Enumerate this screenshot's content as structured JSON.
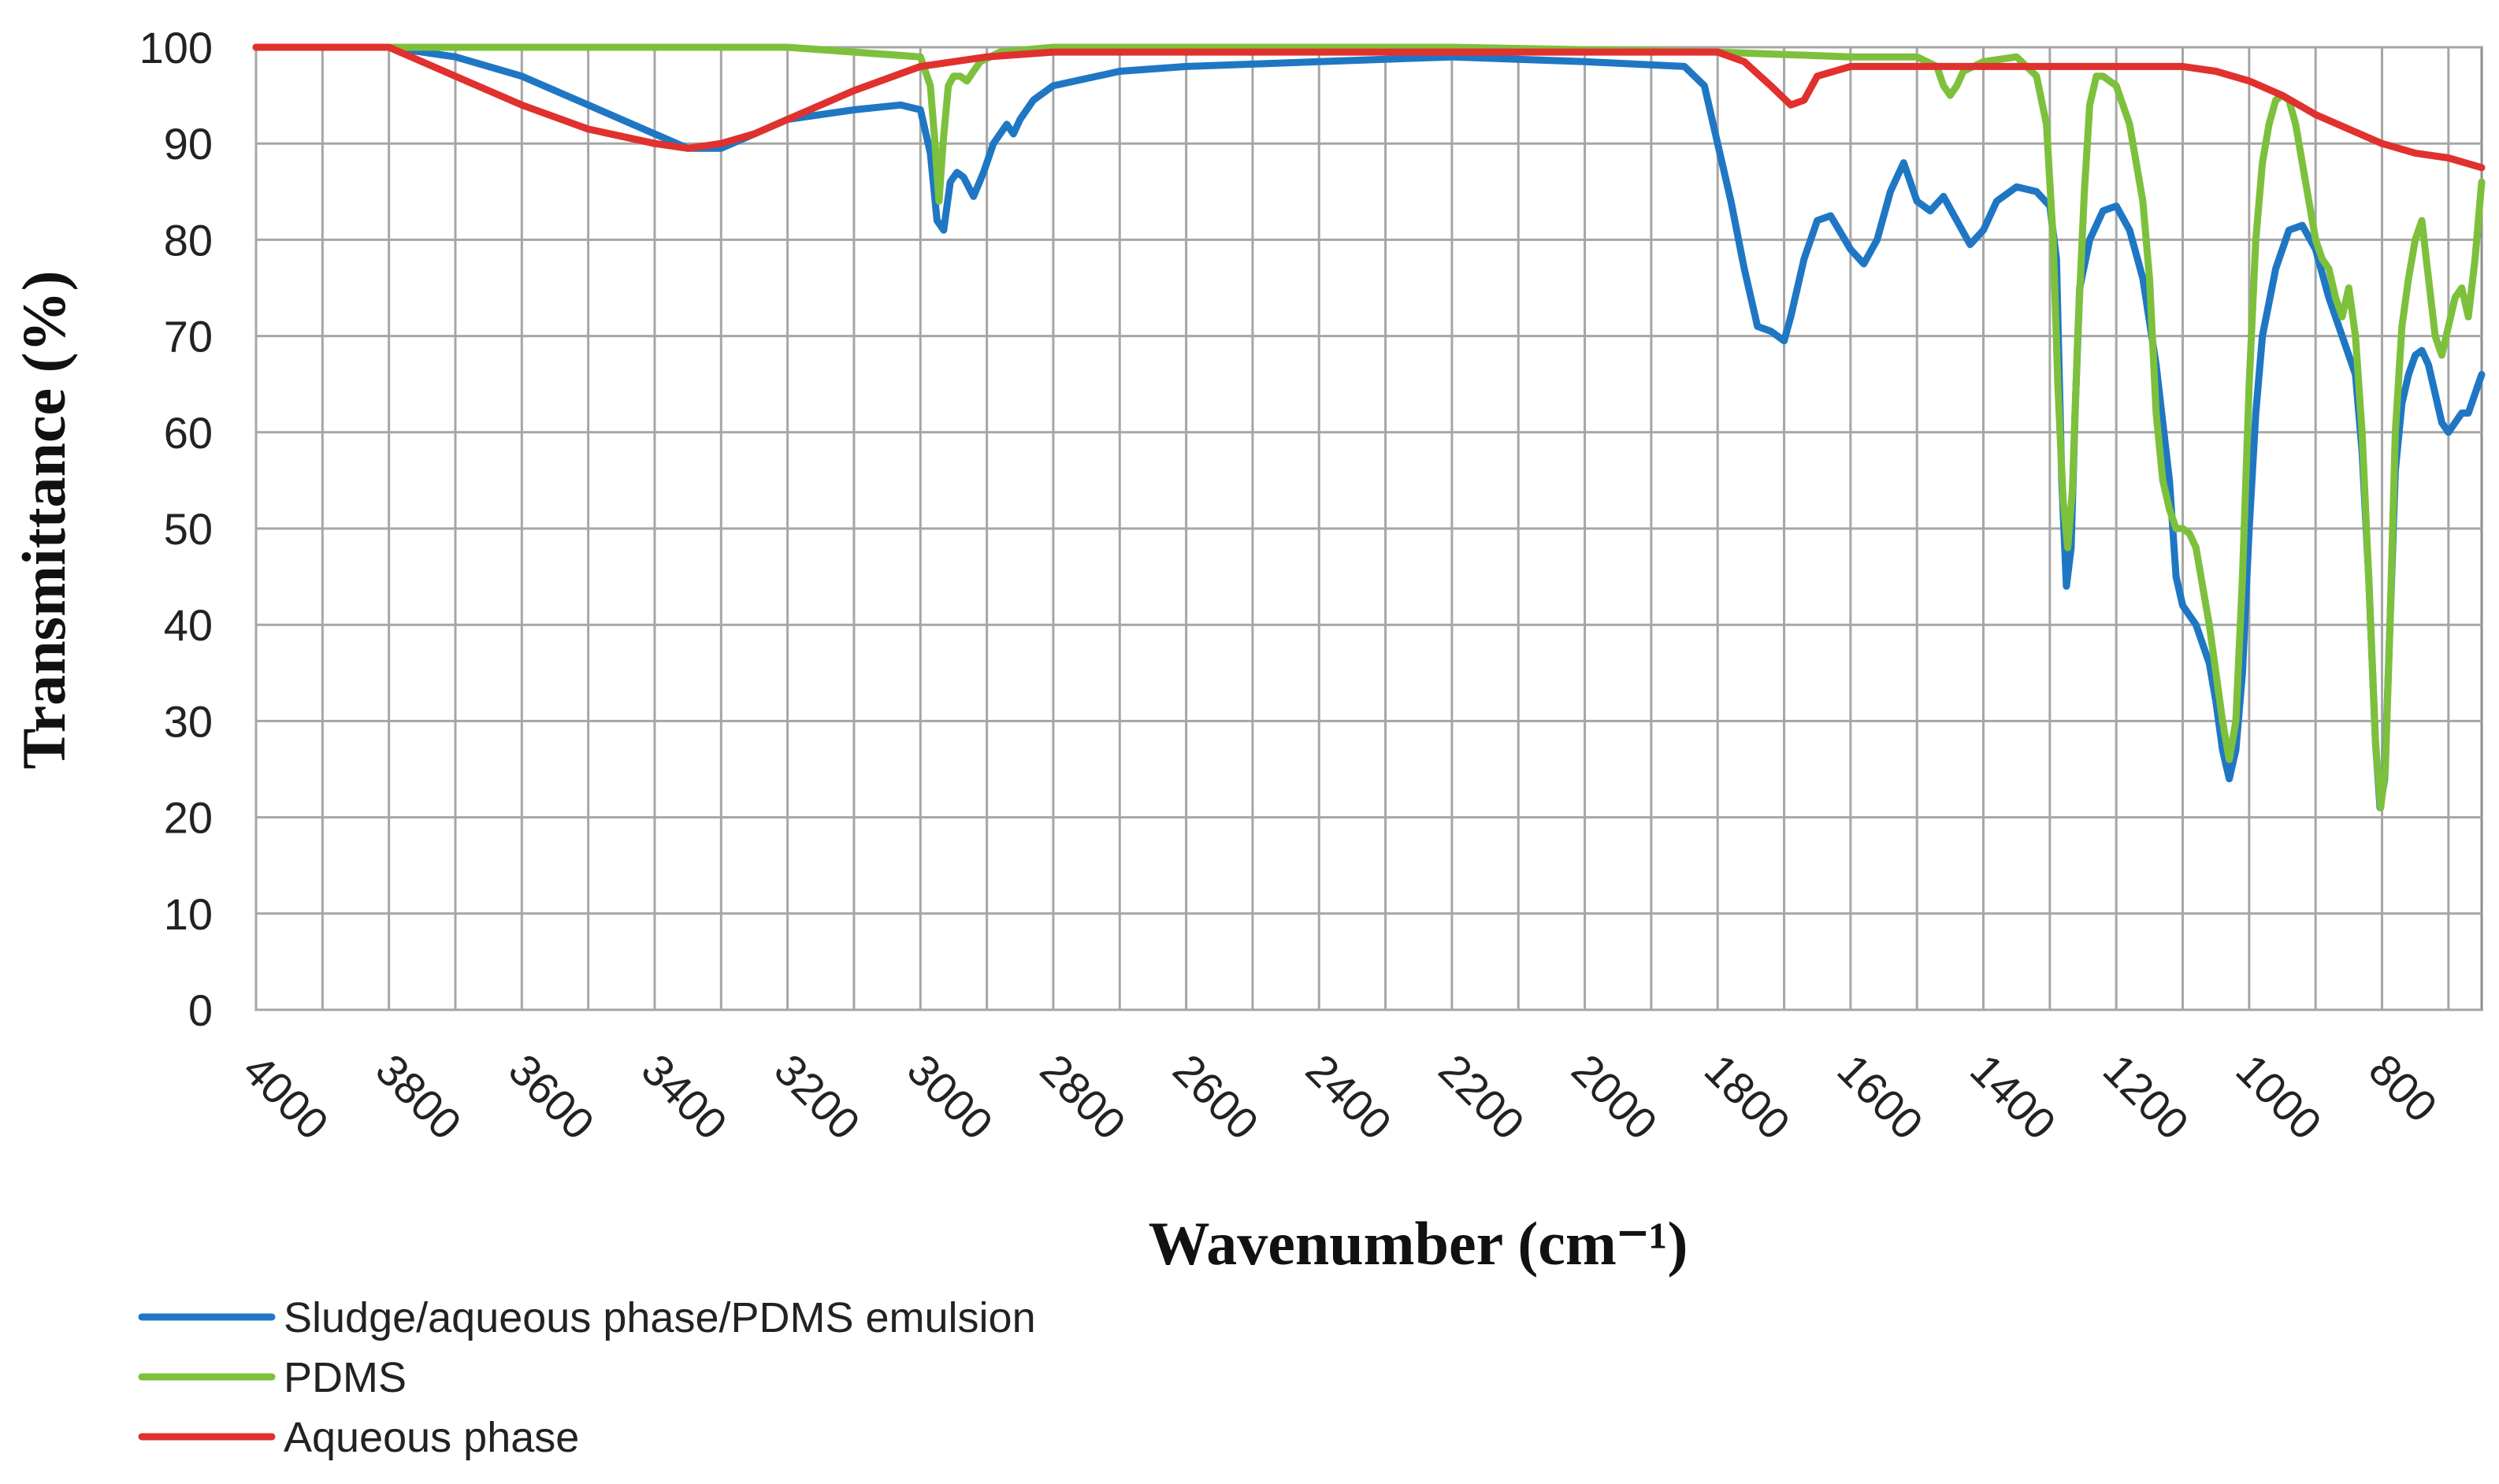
{
  "chart_data": {
    "type": "line",
    "title": "",
    "xlabel": "Wavenumber (cm⁻¹)",
    "ylabel": "Transmittance (%)",
    "xlim": [
      4000,
      650
    ],
    "ylim": [
      0,
      100
    ],
    "x_reversed": true,
    "grid": true,
    "x_ticks": [
      "4000",
      "3800",
      "3600",
      "3400",
      "3200",
      "3000",
      "2800",
      "2600",
      "2400",
      "2200",
      "2000",
      "1800",
      "1600",
      "1400",
      "1200",
      "1000",
      "800"
    ],
    "y_ticks": [
      "0",
      "10",
      "20",
      "30",
      "40",
      "50",
      "60",
      "70",
      "80",
      "90",
      "100"
    ],
    "legend_position": "bottom-left",
    "series": [
      {
        "name": "Sludge/aqueous phase/PDMS emulsion",
        "color": "#1f77c4",
        "points": [
          [
            4000,
            100
          ],
          [
            3800,
            100
          ],
          [
            3700,
            99
          ],
          [
            3600,
            97
          ],
          [
            3500,
            94
          ],
          [
            3400,
            91
          ],
          [
            3350,
            89.5
          ],
          [
            3300,
            89.5
          ],
          [
            3250,
            91
          ],
          [
            3200,
            92.5
          ],
          [
            3100,
            93.5
          ],
          [
            3030,
            94
          ],
          [
            3000,
            93.5
          ],
          [
            2985,
            89
          ],
          [
            2975,
            82
          ],
          [
            2965,
            81
          ],
          [
            2955,
            86
          ],
          [
            2945,
            87
          ],
          [
            2935,
            86.5
          ],
          [
            2920,
            84.5
          ],
          [
            2905,
            87
          ],
          [
            2890,
            90
          ],
          [
            2870,
            92
          ],
          [
            2860,
            91
          ],
          [
            2850,
            92.5
          ],
          [
            2830,
            94.5
          ],
          [
            2800,
            96
          ],
          [
            2700,
            97.5
          ],
          [
            2600,
            98
          ],
          [
            2400,
            98.5
          ],
          [
            2200,
            99
          ],
          [
            2000,
            98.5
          ],
          [
            1850,
            98
          ],
          [
            1820,
            96
          ],
          [
            1800,
            90
          ],
          [
            1780,
            84
          ],
          [
            1760,
            77
          ],
          [
            1740,
            71
          ],
          [
            1720,
            70.5
          ],
          [
            1700,
            69.5
          ],
          [
            1690,
            72
          ],
          [
            1670,
            78
          ],
          [
            1650,
            82
          ],
          [
            1630,
            82.5
          ],
          [
            1600,
            79
          ],
          [
            1580,
            77.5
          ],
          [
            1560,
            80
          ],
          [
            1540,
            85
          ],
          [
            1520,
            88
          ],
          [
            1500,
            84
          ],
          [
            1480,
            83
          ],
          [
            1460,
            84.5
          ],
          [
            1440,
            82
          ],
          [
            1420,
            79.5
          ],
          [
            1400,
            81
          ],
          [
            1380,
            84
          ],
          [
            1350,
            85.5
          ],
          [
            1320,
            85
          ],
          [
            1300,
            83.5
          ],
          [
            1290,
            78
          ],
          [
            1282,
            55
          ],
          [
            1275,
            44
          ],
          [
            1268,
            48
          ],
          [
            1262,
            62
          ],
          [
            1255,
            75
          ],
          [
            1240,
            80
          ],
          [
            1220,
            83
          ],
          [
            1200,
            83.5
          ],
          [
            1180,
            81
          ],
          [
            1160,
            76
          ],
          [
            1140,
            67
          ],
          [
            1120,
            55
          ],
          [
            1110,
            45
          ],
          [
            1100,
            42
          ],
          [
            1080,
            40
          ],
          [
            1060,
            36
          ],
          [
            1050,
            32
          ],
          [
            1040,
            27
          ],
          [
            1030,
            24
          ],
          [
            1020,
            27
          ],
          [
            1010,
            35
          ],
          [
            1000,
            50
          ],
          [
            990,
            62
          ],
          [
            980,
            70
          ],
          [
            960,
            77
          ],
          [
            940,
            81
          ],
          [
            920,
            81.5
          ],
          [
            900,
            79
          ],
          [
            880,
            74
          ],
          [
            860,
            70
          ],
          [
            840,
            66
          ],
          [
            830,
            58
          ],
          [
            820,
            45
          ],
          [
            810,
            28
          ],
          [
            803,
            21
          ],
          [
            796,
            24
          ],
          [
            788,
            40
          ],
          [
            780,
            56
          ],
          [
            770,
            63
          ],
          [
            760,
            66
          ],
          [
            750,
            68
          ],
          [
            740,
            68.5
          ],
          [
            730,
            67
          ],
          [
            720,
            64
          ],
          [
            710,
            61
          ],
          [
            700,
            60
          ],
          [
            690,
            61
          ],
          [
            680,
            62
          ],
          [
            670,
            62
          ],
          [
            660,
            64
          ],
          [
            650,
            66
          ]
        ]
      },
      {
        "name": "PDMS",
        "color": "#7dc03c",
        "points": [
          [
            4000,
            100
          ],
          [
            3200,
            100
          ],
          [
            3100,
            99.5
          ],
          [
            3000,
            99
          ],
          [
            2985,
            96
          ],
          [
            2978,
            90
          ],
          [
            2972,
            84
          ],
          [
            2966,
            90
          ],
          [
            2958,
            96
          ],
          [
            2950,
            97
          ],
          [
            2940,
            97
          ],
          [
            2930,
            96.5
          ],
          [
            2920,
            97.5
          ],
          [
            2910,
            98.5
          ],
          [
            2880,
            99.5
          ],
          [
            2800,
            100
          ],
          [
            2200,
            100
          ],
          [
            1800,
            99.5
          ],
          [
            1600,
            99
          ],
          [
            1500,
            99
          ],
          [
            1470,
            98
          ],
          [
            1460,
            96
          ],
          [
            1450,
            95
          ],
          [
            1440,
            96
          ],
          [
            1430,
            97.5
          ],
          [
            1400,
            98.5
          ],
          [
            1350,
            99
          ],
          [
            1320,
            97
          ],
          [
            1305,
            92
          ],
          [
            1295,
            80
          ],
          [
            1288,
            65
          ],
          [
            1280,
            53
          ],
          [
            1273,
            48
          ],
          [
            1266,
            54
          ],
          [
            1258,
            70
          ],
          [
            1248,
            85
          ],
          [
            1240,
            94
          ],
          [
            1230,
            97
          ],
          [
            1220,
            97
          ],
          [
            1200,
            96
          ],
          [
            1180,
            92
          ],
          [
            1160,
            84
          ],
          [
            1150,
            76
          ],
          [
            1140,
            62
          ],
          [
            1130,
            55
          ],
          [
            1120,
            52
          ],
          [
            1110,
            50
          ],
          [
            1100,
            50
          ],
          [
            1090,
            49.5
          ],
          [
            1080,
            48
          ],
          [
            1070,
            44
          ],
          [
            1060,
            40
          ],
          [
            1050,
            35
          ],
          [
            1040,
            30
          ],
          [
            1030,
            26
          ],
          [
            1020,
            30
          ],
          [
            1010,
            45
          ],
          [
            1000,
            65
          ],
          [
            990,
            80
          ],
          [
            980,
            88
          ],
          [
            970,
            92
          ],
          [
            960,
            94.5
          ],
          [
            950,
            95
          ],
          [
            940,
            94.5
          ],
          [
            930,
            92
          ],
          [
            920,
            88
          ],
          [
            910,
            84
          ],
          [
            900,
            80
          ],
          [
            890,
            78
          ],
          [
            880,
            77
          ],
          [
            870,
            74
          ],
          [
            860,
            72
          ],
          [
            850,
            75
          ],
          [
            840,
            70
          ],
          [
            830,
            60
          ],
          [
            820,
            45
          ],
          [
            810,
            28
          ],
          [
            802,
            21
          ],
          [
            795,
            25
          ],
          [
            788,
            40
          ],
          [
            780,
            60
          ],
          [
            770,
            71
          ],
          [
            760,
            76
          ],
          [
            750,
            80
          ],
          [
            740,
            82
          ],
          [
            730,
            76
          ],
          [
            720,
            70
          ],
          [
            710,
            68
          ],
          [
            700,
            71
          ],
          [
            690,
            74
          ],
          [
            680,
            75
          ],
          [
            670,
            72
          ],
          [
            660,
            78
          ],
          [
            650,
            86
          ]
        ]
      },
      {
        "name": "Aqueous phase",
        "color": "#e0312e",
        "points": [
          [
            4000,
            100
          ],
          [
            3800,
            100
          ],
          [
            3700,
            97
          ],
          [
            3600,
            94
          ],
          [
            3500,
            91.5
          ],
          [
            3400,
            90
          ],
          [
            3350,
            89.5
          ],
          [
            3300,
            90
          ],
          [
            3250,
            91
          ],
          [
            3200,
            92.5
          ],
          [
            3100,
            95.5
          ],
          [
            3000,
            98
          ],
          [
            2900,
            99
          ],
          [
            2800,
            99.5
          ],
          [
            2200,
            99.5
          ],
          [
            2000,
            99.5
          ],
          [
            1800,
            99.5
          ],
          [
            1760,
            98.5
          ],
          [
            1720,
            96
          ],
          [
            1690,
            94
          ],
          [
            1670,
            94.5
          ],
          [
            1650,
            97
          ],
          [
            1600,
            98
          ],
          [
            1500,
            98
          ],
          [
            1200,
            98
          ],
          [
            1100,
            98
          ],
          [
            1050,
            97.5
          ],
          [
            1000,
            96.5
          ],
          [
            950,
            95
          ],
          [
            900,
            93
          ],
          [
            850,
            91.5
          ],
          [
            800,
            90
          ],
          [
            750,
            89
          ],
          [
            700,
            88.5
          ],
          [
            650,
            87.5
          ]
        ]
      }
    ]
  }
}
